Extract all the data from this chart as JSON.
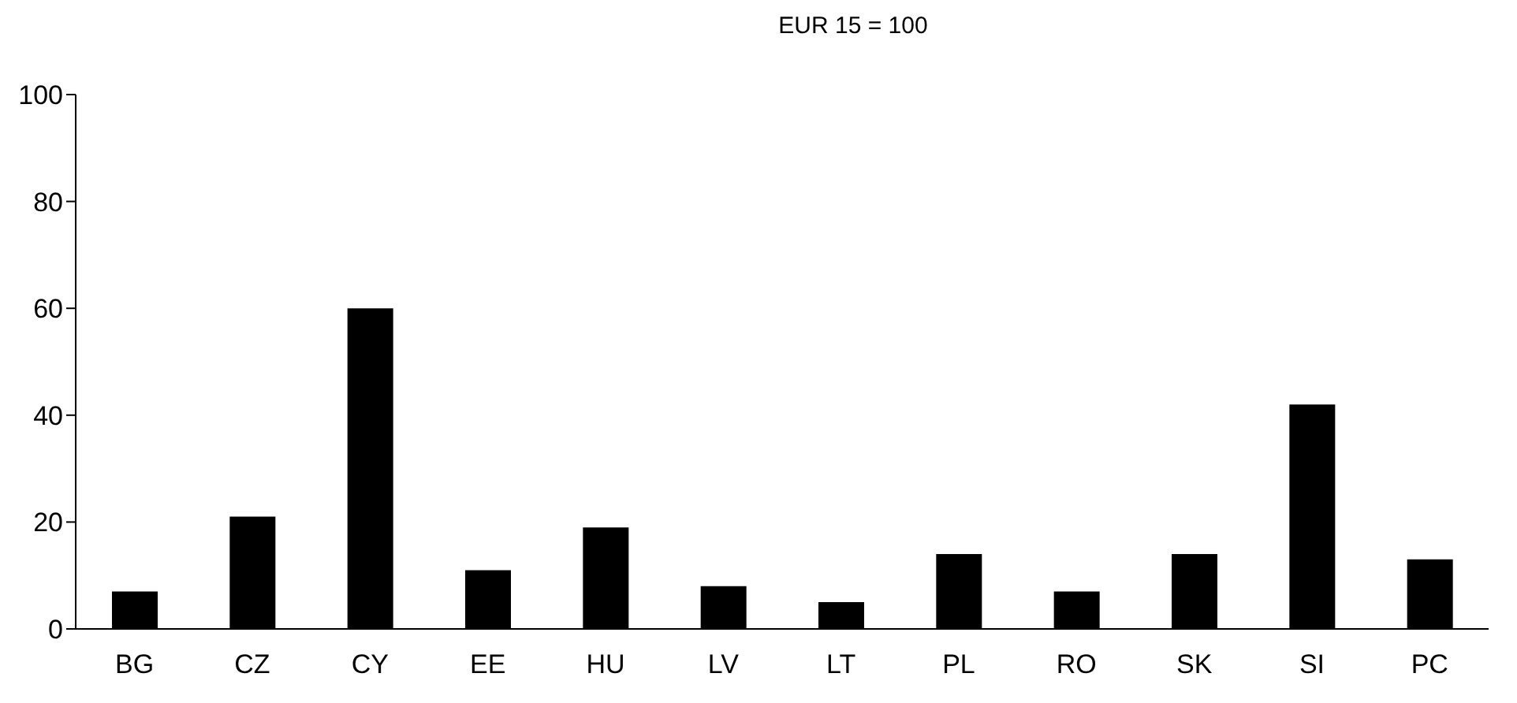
{
  "chart_data": {
    "type": "bar",
    "title": "EUR 15 = 100",
    "categories": [
      "BG",
      "CZ",
      "CY",
      "EE",
      "HU",
      "LV",
      "LT",
      "PL",
      "RO",
      "SK",
      "SI",
      "PC"
    ],
    "values": [
      7,
      21,
      60,
      11,
      19,
      8,
      5,
      14,
      7,
      14,
      42,
      13
    ],
    "color": "#000000",
    "ylim": [
      0,
      100
    ],
    "yticks": [
      0,
      20,
      40,
      60,
      80,
      100
    ],
    "grid": false,
    "legend": false
  }
}
